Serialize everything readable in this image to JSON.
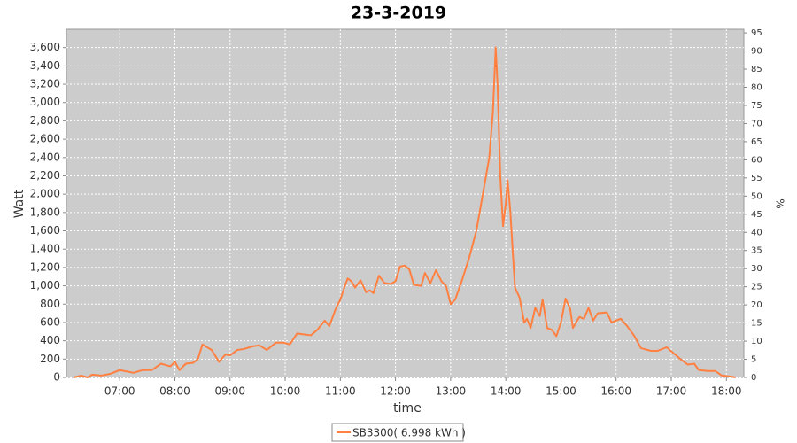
{
  "chart_data": {
    "type": "line",
    "title": "23-3-2019",
    "x_label": "time",
    "y_label": "Watt",
    "y2_label": "%",
    "xlim": [
      "06:02",
      "18:19"
    ],
    "xticks": [
      "07:00",
      "08:00",
      "09:00",
      "10:00",
      "11:00",
      "12:00",
      "13:00",
      "14:00",
      "15:00",
      "16:00",
      "17:00",
      "18:00"
    ],
    "ylim": [
      0,
      3800
    ],
    "yticks": [
      0,
      200,
      400,
      600,
      800,
      {
        "value": 1000,
        "label": "1,000"
      },
      {
        "value": 1200,
        "label": "1,200"
      },
      {
        "value": 1400,
        "label": "1,400"
      },
      {
        "value": 1600,
        "label": "1,600"
      },
      {
        "value": 1800,
        "label": "1,800"
      },
      {
        "value": 2000,
        "label": "2,000"
      },
      {
        "value": 2200,
        "label": "2,200"
      },
      {
        "value": 2400,
        "label": "2,400"
      },
      {
        "value": 2600,
        "label": "2,600"
      },
      {
        "value": 2800,
        "label": "2,800"
      },
      {
        "value": 3000,
        "label": "3,000"
      },
      {
        "value": 3200,
        "label": "3,200"
      },
      {
        "value": 3400,
        "label": "3,400"
      },
      {
        "value": 3600,
        "label": "3,600"
      }
    ],
    "y2lim": [
      0,
      96
    ],
    "y2ticks": [
      0,
      5,
      10,
      15,
      20,
      25,
      30,
      35,
      40,
      45,
      50,
      55,
      60,
      65,
      70,
      75,
      80,
      85,
      90,
      95
    ],
    "grid": true,
    "x": [
      "06:10",
      "06:18",
      "06:25",
      "06:30",
      "06:40",
      "06:50",
      "07:00",
      "07:10",
      "07:15",
      "07:25",
      "07:35",
      "07:45",
      "07:55",
      "08:00",
      "08:05",
      "08:12",
      "08:20",
      "08:25",
      "08:30",
      "08:35",
      "08:40",
      "08:48",
      "08:55",
      "09:00",
      "09:08",
      "09:15",
      "09:25",
      "09:32",
      "09:40",
      "09:50",
      "09:58",
      "10:05",
      "10:13",
      "10:20",
      "10:28",
      "10:35",
      "10:43",
      "10:48",
      "10:55",
      "11:00",
      "11:05",
      "11:08",
      "11:12",
      "11:16",
      "11:22",
      "11:28",
      "11:32",
      "11:36",
      "11:42",
      "11:48",
      "11:55",
      "12:00",
      "12:05",
      "12:10",
      "12:15",
      "12:20",
      "12:28",
      "12:32",
      "12:38",
      "12:44",
      "12:50",
      "12:55",
      "13:00",
      "13:05",
      "13:12",
      "13:20",
      "13:28",
      "13:35",
      "13:42",
      "13:46",
      "13:49",
      "13:51",
      "13:54",
      "13:57",
      "14:00",
      "14:02",
      "14:05",
      "14:08",
      "14:10",
      "14:15",
      "14:20",
      "14:23",
      "14:27",
      "14:32",
      "14:37",
      "14:40",
      "14:45",
      "14:50",
      "14:55",
      "15:00",
      "15:05",
      "15:10",
      "15:13",
      "15:20",
      "15:25",
      "15:30",
      "15:35",
      "15:40",
      "15:50",
      "15:55",
      "16:05",
      "16:12",
      "16:20",
      "16:27",
      "16:38",
      "16:45",
      "16:55",
      "17:03",
      "17:10",
      "17:18",
      "17:25",
      "17:30",
      "17:40",
      "17:48",
      "17:55",
      "18:05",
      "18:10"
    ],
    "series": [
      {
        "name": "SB3300( 6.998 kWh )",
        "color": "#ff8040",
        "values": [
          0,
          20,
          0,
          30,
          20,
          40,
          80,
          60,
          50,
          80,
          80,
          150,
          120,
          170,
          80,
          150,
          160,
          200,
          360,
          330,
          300,
          170,
          250,
          240,
          300,
          310,
          340,
          350,
          300,
          380,
          380,
          360,
          480,
          470,
          460,
          520,
          620,
          560,
          750,
          850,
          1000,
          1080,
          1050,
          980,
          1060,
          930,
          950,
          920,
          1110,
          1030,
          1020,
          1050,
          1210,
          1220,
          1180,
          1010,
          1000,
          1140,
          1030,
          1170,
          1050,
          1000,
          800,
          850,
          1050,
          1300,
          1600,
          2000,
          2400,
          2900,
          3600,
          3200,
          2200,
          1650,
          1900,
          2150,
          1800,
          1300,
          980,
          870,
          600,
          640,
          540,
          760,
          670,
          850,
          540,
          520,
          450,
          600,
          860,
          750,
          540,
          660,
          640,
          760,
          620,
          700,
          710,
          600,
          640,
          560,
          450,
          320,
          290,
          290,
          330,
          260,
          200,
          140,
          150,
          80,
          70,
          70,
          20,
          10,
          0
        ]
      }
    ]
  }
}
